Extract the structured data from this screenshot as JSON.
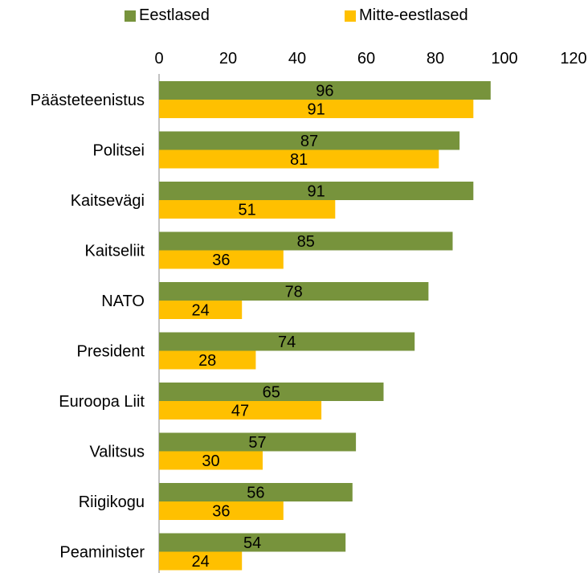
{
  "chart_data": {
    "type": "bar",
    "orientation": "horizontal",
    "categories": [
      "Päästeteenistus",
      "Politsei",
      "Kaitsevägi",
      "Kaitseliit",
      "NATO",
      "President",
      "Euroopa Liit",
      "Valitsus",
      "Riigikogu",
      "Peaminister"
    ],
    "series": [
      {
        "name": "Eestlased",
        "color": "#77933C",
        "values": [
          96,
          87,
          91,
          85,
          78,
          74,
          65,
          57,
          56,
          54
        ]
      },
      {
        "name": "Mitte-eestlased",
        "color": "#FFC000",
        "values": [
          91,
          81,
          51,
          36,
          24,
          28,
          47,
          30,
          36,
          24
        ]
      }
    ],
    "xlim": [
      0,
      120
    ],
    "ticks": [
      "0",
      "20",
      "40",
      "60",
      "80",
      "100",
      "120"
    ],
    "xaxis_position": "top",
    "data_labels": true,
    "grid": false,
    "legend_position": "top"
  }
}
